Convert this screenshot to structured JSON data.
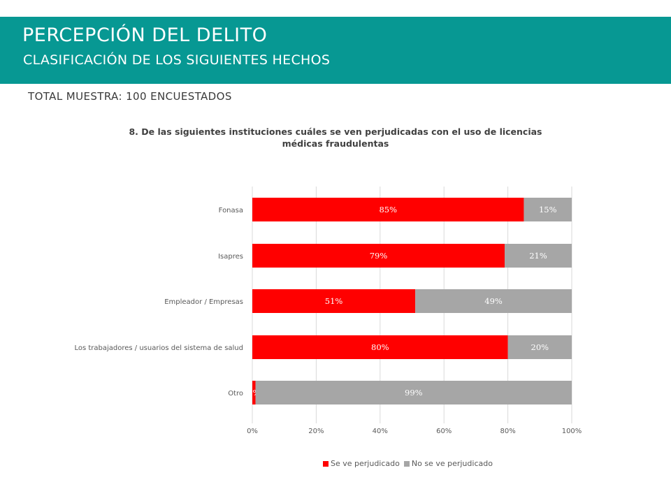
{
  "header": {
    "title": "PERCEPCIÓN DEL DELITO",
    "subtitle": "CLASIFICACIÓN DE LOS SIGUIENTES HECHOS",
    "sample_note": "TOTAL MUESTRA: 100 ENCUESTADOS",
    "band_color": "#079893"
  },
  "chart_data": {
    "type": "bar",
    "orientation": "horizontal",
    "stacked": true,
    "title": "8. De las siguientes instituciones cuáles se ven perjudicadas con el uso de licencias médicas fraudulentas",
    "categories": [
      "Fonasa",
      "Isapres",
      "Empleador / Empresas",
      "Los trabajadores / usuarios del sistema de salud",
      "Otro"
    ],
    "series": [
      {
        "name": "Se ve perjudicado",
        "color": "#ff0000",
        "values": [
          85,
          79,
          51,
          80,
          1
        ],
        "labels": [
          "85%",
          "79%",
          "51%",
          "80%",
          "1%"
        ]
      },
      {
        "name": "No se ve perjudicado",
        "color": "#a6a6a6",
        "values": [
          15,
          21,
          49,
          20,
          99
        ],
        "labels": [
          "15%",
          "21%",
          "49%",
          "20%",
          "99%"
        ]
      }
    ],
    "xlim": [
      0,
      100
    ],
    "ticks": [
      "0%",
      "20%",
      "40%",
      "60%",
      "80%",
      "100%"
    ],
    "gridlines": true,
    "legend_position": "bottom"
  }
}
